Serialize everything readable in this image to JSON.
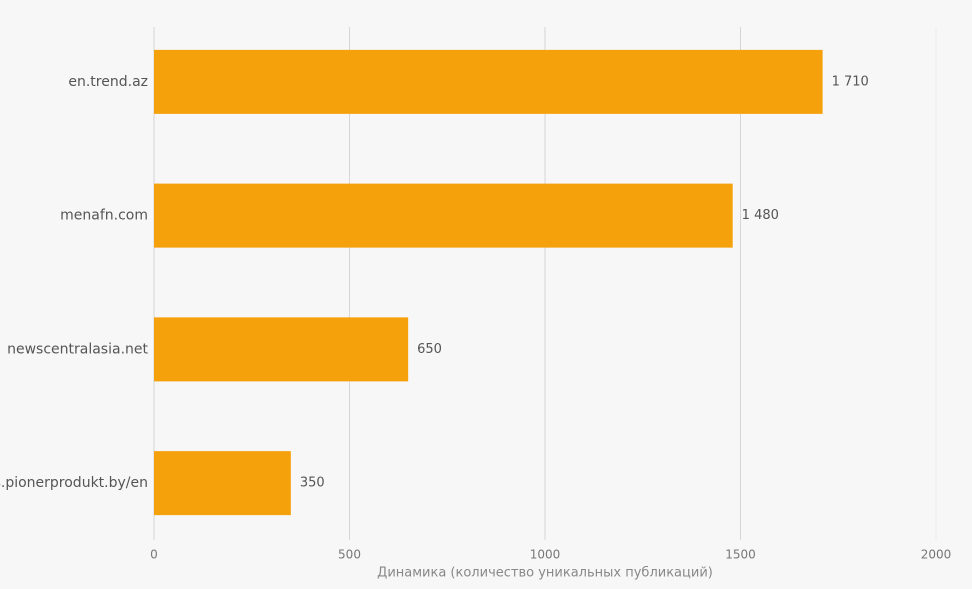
{
  "chart_data": {
    "type": "bar",
    "orientation": "horizontal",
    "x_label": "Динамика (количество уникальных публикаций)",
    "categories": [
      "en.trend.az",
      "menafn.com",
      "newscentralasia.net",
      "s.pionerprodukt.by/en"
    ],
    "values": [
      1710,
      1480,
      650,
      350
    ],
    "value_labels": [
      "1 710",
      "1 480",
      "650",
      "350"
    ],
    "color": "#f5a10b",
    "xlim": [
      0,
      2000
    ],
    "xticks": [
      0,
      500,
      1000,
      1500,
      2000
    ],
    "grid": true
  }
}
